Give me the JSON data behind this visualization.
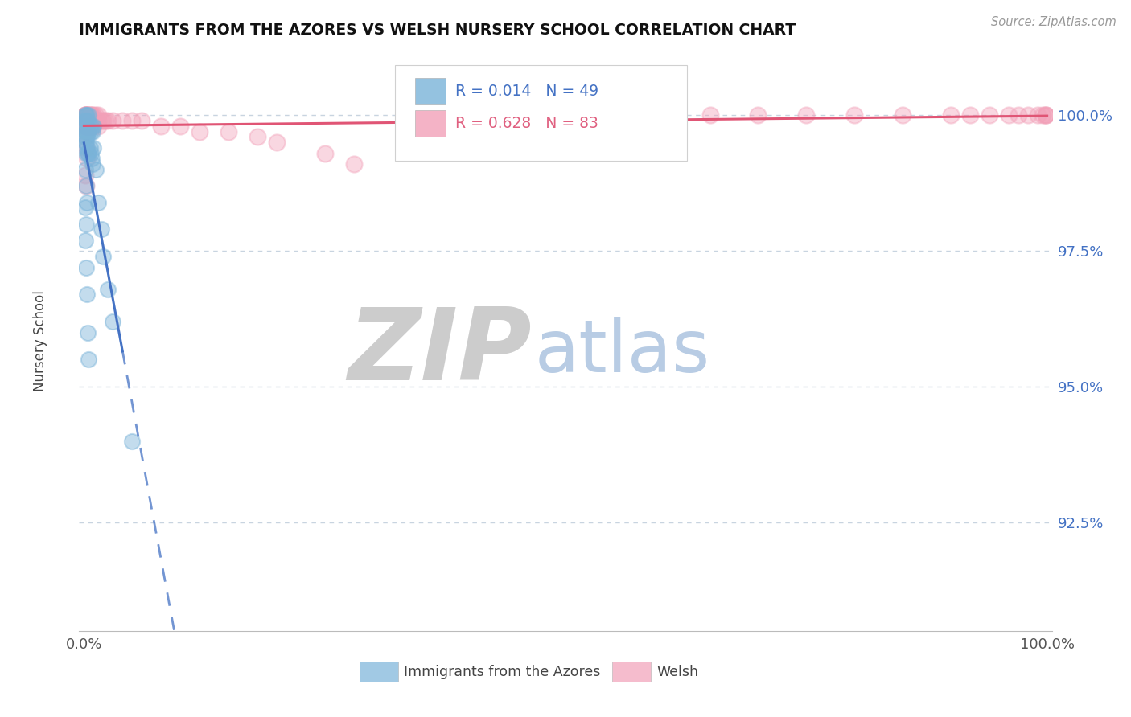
{
  "title": "IMMIGRANTS FROM THE AZORES VS WELSH NURSERY SCHOOL CORRELATION CHART",
  "source_text": "Source: ZipAtlas.com",
  "ylabel": "Nursery School",
  "right_ytick_labels": [
    "92.5%",
    "95.0%",
    "97.5%",
    "100.0%"
  ],
  "right_ytick_values": [
    0.925,
    0.95,
    0.975,
    1.0
  ],
  "xlim": [
    -0.005,
    1.005
  ],
  "ylim": [
    0.905,
    1.012
  ],
  "xtick_labels": [
    "0.0%",
    "100.0%"
  ],
  "xtick_values": [
    0.0,
    1.0
  ],
  "blue_R": "0.014",
  "blue_N": "49",
  "pink_R": "0.628",
  "pink_N": "83",
  "blue_color": "#7ab3d9",
  "pink_color": "#f2a0b8",
  "blue_line_color": "#4472c4",
  "pink_line_color": "#e05575",
  "grid_color": "#c8d4e0",
  "title_color": "#111111",
  "axis_label_color": "#444444",
  "right_tick_color": "#4472c4",
  "zip_color": "#c8d4e0",
  "atlas_color": "#b8cce4",
  "legend_blue_label": "Immigrants from the Azores",
  "legend_pink_label": "Welsh"
}
